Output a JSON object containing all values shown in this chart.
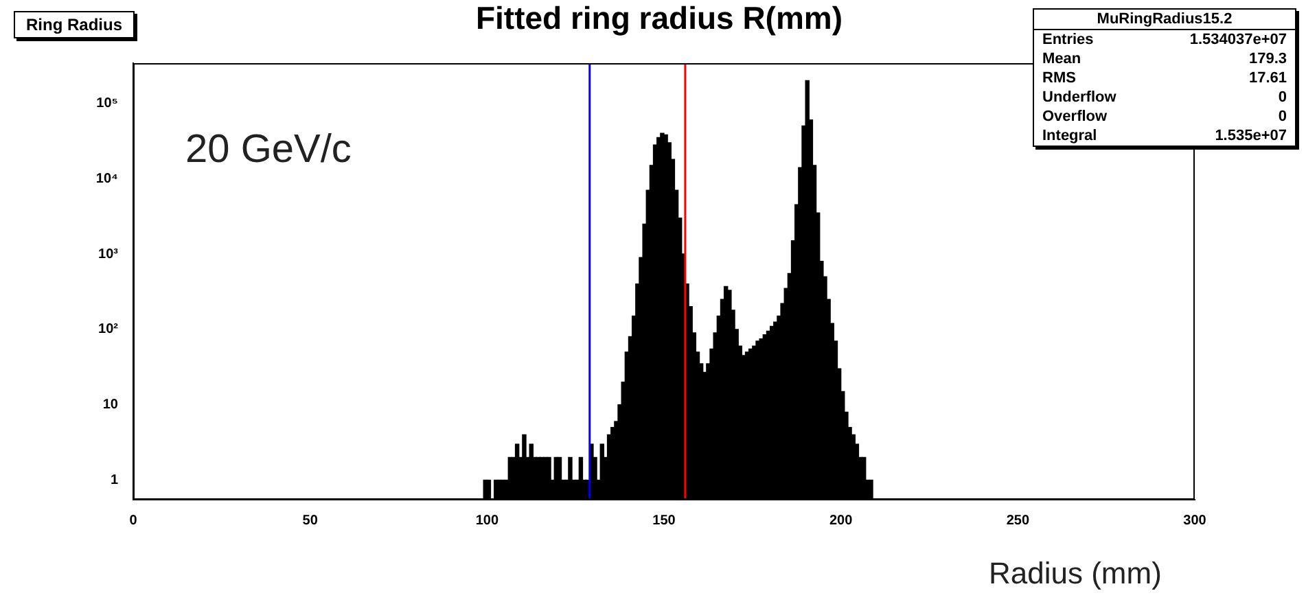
{
  "chart_data": {
    "type": "histogram",
    "title": "Fitted ring radius R(mm)",
    "xlabel": "Radius (mm)",
    "annotations": [
      "Ring Radius",
      "20 GeV/c",
      "MuRingRadius15.2",
      "Entries",
      "1.534037e+07",
      "Mean",
      "179.3",
      "RMS",
      "17.61",
      "Underflow",
      "0",
      "Overflow",
      "0",
      "Integral",
      "1.535e+07"
    ],
    "bins": [
      99,
      100,
      101,
      102,
      103,
      104,
      105,
      106,
      107,
      108,
      109,
      110,
      111,
      112,
      113,
      114,
      115,
      116,
      117,
      118,
      119,
      120,
      121,
      122,
      123,
      124,
      125,
      126,
      127,
      128,
      129,
      130,
      131,
      132,
      133,
      134,
      135,
      136,
      137,
      138,
      139,
      140,
      141,
      142,
      143,
      144,
      145,
      146,
      147,
      148,
      149,
      150,
      151,
      152,
      153,
      154,
      155,
      156,
      157,
      158,
      159,
      160,
      161,
      162,
      163,
      164,
      165,
      166,
      167,
      168,
      169,
      170,
      171,
      172,
      173,
      174,
      175,
      176,
      177,
      178,
      179,
      180,
      181,
      182,
      183,
      184,
      185,
      186,
      187,
      188,
      189,
      190,
      191,
      192,
      193,
      194,
      195,
      196,
      197,
      198,
      199,
      200,
      201,
      202,
      203,
      204,
      205,
      206,
      207,
      208,
      209
    ],
    "values": [
      1,
      1,
      null,
      1,
      1,
      1,
      1,
      2,
      2,
      3,
      2,
      4,
      2,
      3,
      2,
      2,
      2,
      2,
      2,
      1,
      2,
      2,
      1,
      1,
      2,
      1,
      1,
      2,
      1,
      1,
      3,
      2,
      1,
      3,
      2,
      4,
      5,
      6,
      10,
      20,
      50,
      80,
      150,
      400,
      900,
      2500,
      7000,
      15000,
      28000,
      35000,
      40000,
      38000,
      30000,
      18000,
      7000,
      3000,
      1000,
      400,
      200,
      90,
      50,
      35,
      27,
      35,
      55,
      90,
      150,
      250,
      370,
      330,
      180,
      100,
      60,
      45,
      50,
      55,
      60,
      70,
      75,
      85,
      95,
      110,
      125,
      150,
      220,
      350,
      550,
      1500,
      4500,
      14000,
      50000,
      200000,
      60000,
      15000,
      3500,
      800,
      500,
      250,
      120,
      70,
      30,
      15,
      8,
      5,
      4,
      3,
      2,
      2,
      1,
      1
    ],
    "color": "#000000",
    "log": true,
    "xlim": [
      0,
      300
    ],
    "xticks": [
      0,
      50,
      100,
      150,
      200,
      250,
      300
    ],
    "ylim": [
      0.55,
      340000
    ],
    "yticks": [
      1,
      10,
      {
        "value": 100,
        "label": "10²"
      },
      {
        "value": 1000,
        "label": "10³"
      },
      {
        "value": 10000,
        "label": "10⁴"
      },
      {
        "value": 100000,
        "label": "10⁵"
      }
    ],
    "ref_lines": [
      {
        "axis": "x",
        "value": 129,
        "color": "#0000ff"
      },
      {
        "axis": "x",
        "value": 156,
        "color": "#ff0000"
      }
    ]
  }
}
